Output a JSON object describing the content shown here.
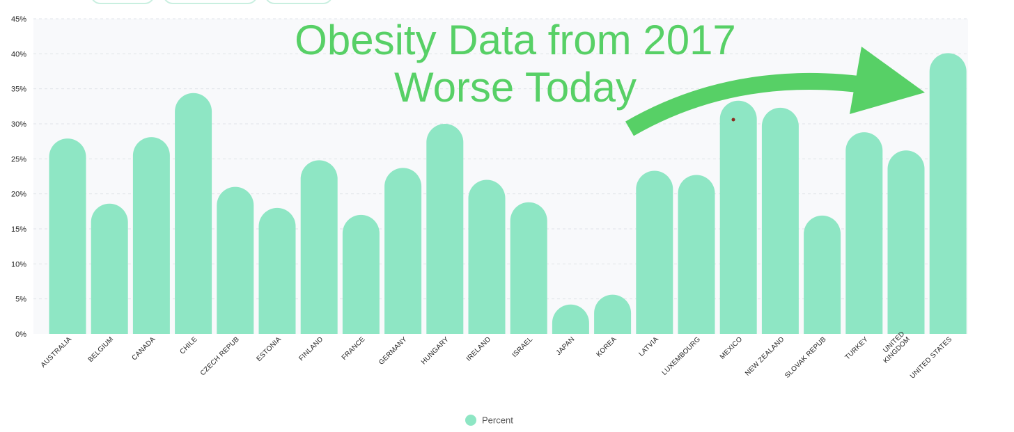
{
  "chart_data": {
    "type": "bar",
    "title_lines": [
      "Obesity Data from 2017",
      "Worse Today"
    ],
    "categories": [
      [
        "AUSTRALIA"
      ],
      [
        "BELGIUM"
      ],
      [
        "CANADA"
      ],
      [
        "CHILE"
      ],
      [
        "CZECH REPUB"
      ],
      [
        "ESTONIA"
      ],
      [
        "FINLAND"
      ],
      [
        "FRANCE"
      ],
      [
        "GERMANY"
      ],
      [
        "HUNGARY"
      ],
      [
        "IRELAND"
      ],
      [
        "ISRAEL"
      ],
      [
        "JAPAN"
      ],
      [
        "KOREA"
      ],
      [
        "LATVIA"
      ],
      [
        "LUXEMBOURG"
      ],
      [
        "MEXICO"
      ],
      [
        "NEW ZEALAND"
      ],
      [
        "SLOVAK REPUB"
      ],
      [
        "TURKEY"
      ],
      [
        "UNITED",
        "KINGDOM"
      ],
      [
        "UNITED STATES"
      ]
    ],
    "series": [
      {
        "name": "Percent",
        "color": "#8ee6c4",
        "values": [
          27.9,
          18.6,
          28.1,
          34.4,
          21.0,
          18.0,
          24.8,
          17.0,
          23.7,
          30.0,
          22.0,
          18.8,
          4.2,
          5.6,
          23.3,
          22.7,
          33.3,
          32.3,
          16.9,
          28.8,
          26.2,
          40.1
        ]
      }
    ],
    "y_ticks": [
      "0%",
      "5%",
      "10%",
      "15%",
      "20%",
      "25%",
      "30%",
      "35%",
      "40%",
      "45%"
    ],
    "ylim": [
      0,
      45
    ],
    "grid": true,
    "legend_position": "bottom-center",
    "annotation": {
      "type": "curved-arrow",
      "color": "#57d066",
      "points_to": "UNITED STATES"
    }
  }
}
